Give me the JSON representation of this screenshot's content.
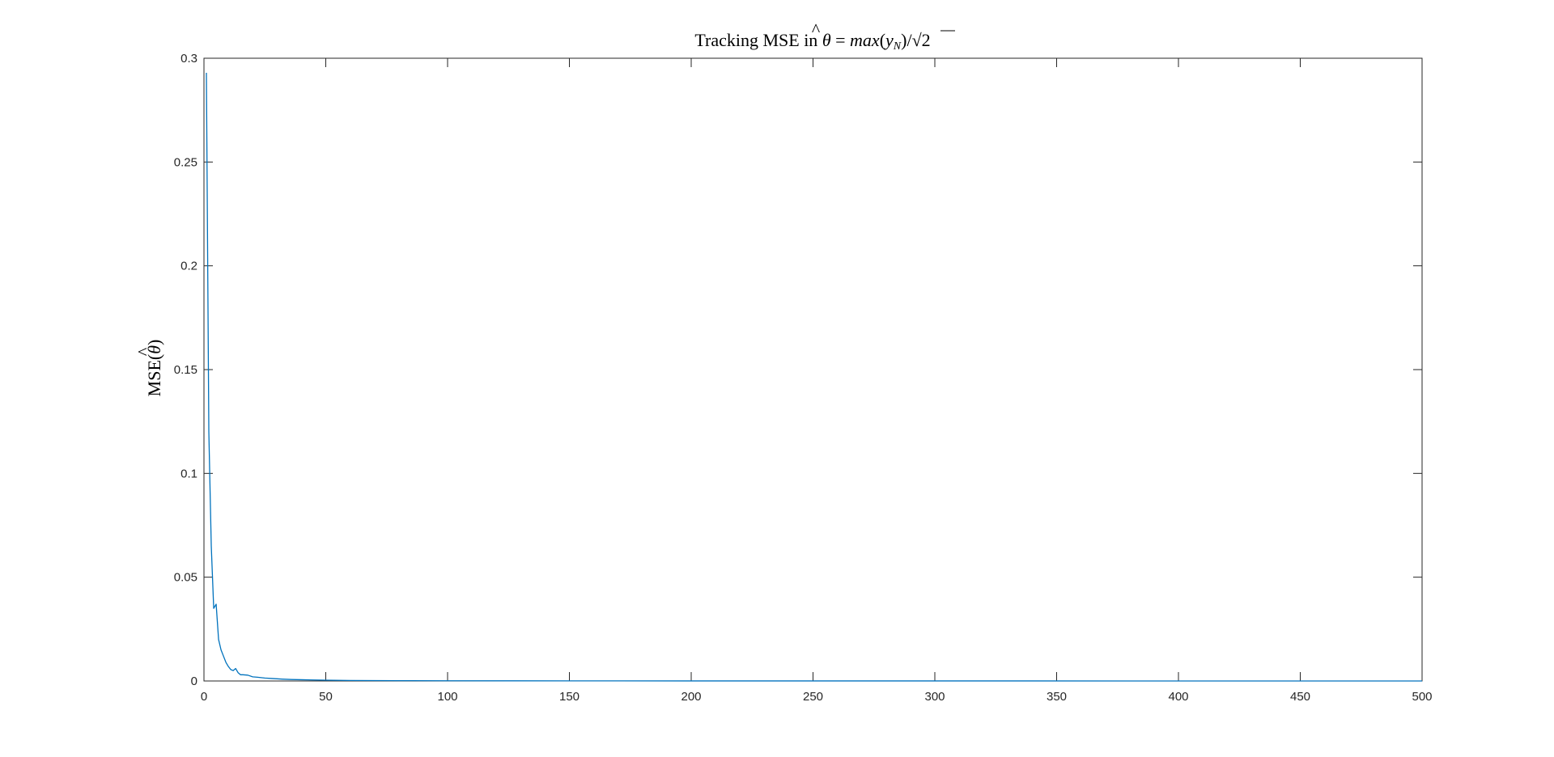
{
  "chart_data": {
    "type": "line",
    "title": "Tracking MSE in θ̂ = max(y_N)/√2",
    "title_parts": {
      "prefix": "Tracking MSE in ",
      "theta": "θ",
      "hat": "^",
      "equals": " = ",
      "func": "max",
      "open": "(",
      "y": "y",
      "sub": "N",
      "close": ")/",
      "radical": "√",
      "radicand": "2"
    },
    "xlabel": "",
    "ylabel": "MSE(θ̂)",
    "ylabel_parts": {
      "text": "MSE(",
      "theta": "θ",
      "hat": "^",
      "close": ")"
    },
    "xlim": [
      0,
      500
    ],
    "ylim": [
      0,
      0.3
    ],
    "x_ticks": [
      "0",
      "50",
      "100",
      "150",
      "200",
      "250",
      "300",
      "350",
      "400",
      "450",
      "500"
    ],
    "y_ticks": [
      "0",
      "0.05",
      "0.1",
      "0.15",
      "0.2",
      "0.25",
      "0.3"
    ],
    "x_tick_values": [
      0,
      50,
      100,
      150,
      200,
      250,
      300,
      350,
      400,
      450,
      500
    ],
    "y_tick_values": [
      0,
      0.05,
      0.1,
      0.15,
      0.2,
      0.25,
      0.3
    ],
    "grid": false,
    "series": [
      {
        "color": "#0072BD",
        "x": [
          1,
          2,
          3,
          4,
          5,
          6,
          7,
          8,
          9,
          10,
          11,
          12,
          13,
          14,
          15,
          16,
          18,
          20,
          22,
          25,
          28,
          32,
          36,
          40,
          45,
          50,
          60,
          70,
          80,
          100,
          150,
          200,
          300,
          400,
          500
        ],
        "y": [
          0.293,
          0.12,
          0.065,
          0.035,
          0.037,
          0.02,
          0.015,
          0.012,
          0.009,
          0.007,
          0.0055,
          0.005,
          0.006,
          0.004,
          0.003,
          0.003,
          0.0028,
          0.002,
          0.0018,
          0.0014,
          0.0012,
          0.0009,
          0.0007,
          0.0006,
          0.0005,
          0.0004,
          0.00025,
          0.0002,
          0.00015,
          0.0001,
          5e-05,
          3e-05,
          2e-05,
          1e-05,
          1e-05
        ]
      }
    ]
  }
}
